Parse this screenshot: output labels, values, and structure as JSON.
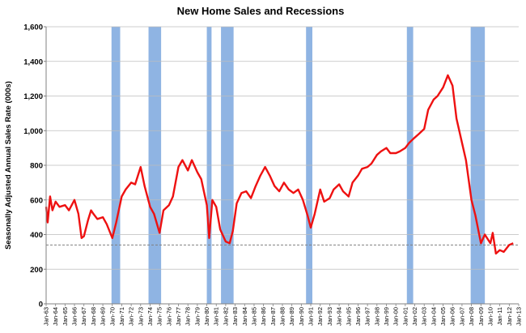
{
  "chart_data": {
    "type": "line",
    "title": "New Home Sales and Recessions",
    "xlabel": "",
    "ylabel": "Seasonally Adjusted Annual Sales Rate (000s)",
    "ylim": [
      0,
      1600
    ],
    "yticks": [
      "0",
      "200",
      "400",
      "600",
      "800",
      "1,000",
      "1,200",
      "1,400",
      "1,600"
    ],
    "xlim": [
      "1963-01",
      "2013-01"
    ],
    "xticks": [
      "Jan-63",
      "Jan-64",
      "Jan-65",
      "Jan-66",
      "Jan-67",
      "Jan-68",
      "Jan-69",
      "Jan-70",
      "Jan-71",
      "Jan-72",
      "Jan-73",
      "Jan-74",
      "Jan-75",
      "Jan-76",
      "Jan-77",
      "Jan-78",
      "Jan-79",
      "Jan-80",
      "Jan-81",
      "Jan-82",
      "Jan-83",
      "Jan-84",
      "Jan-85",
      "Jan-86",
      "Jan-87",
      "Jan-88",
      "Jan-89",
      "Jan-90",
      "Jan-91",
      "Jan-92",
      "Jan-93",
      "Jan-94",
      "Jan-95",
      "Jan-96",
      "Jan-97",
      "Jan-98",
      "Jan-99",
      "Jan-00",
      "Jan-01",
      "Jan-02",
      "Jan-03",
      "Jan-04",
      "Jan-05",
      "Jan-06",
      "Jan-07",
      "Jan-08",
      "Jan-09",
      "Jan-10",
      "Jan-11",
      "Jan-12",
      "Jan-13"
    ],
    "grid": true,
    "legend": "none",
    "line_color": "#ee1111",
    "recession_color": "#8fb4e3",
    "reference_line": {
      "y": 340,
      "style": "dashed",
      "color": "#808080"
    },
    "recessions": [
      {
        "start": "1969-12",
        "end": "1970-11"
      },
      {
        "start": "1973-11",
        "end": "1975-03"
      },
      {
        "start": "1980-01",
        "end": "1980-07"
      },
      {
        "start": "1981-07",
        "end": "1982-11"
      },
      {
        "start": "1990-07",
        "end": "1991-03"
      },
      {
        "start": "2001-03",
        "end": "2001-11"
      },
      {
        "start": "2007-12",
        "end": "2009-06"
      }
    ],
    "series": [
      {
        "color": "#ee1111",
        "points": [
          [
            "1963-01",
            560
          ],
          [
            "1963-03",
            470
          ],
          [
            "1963-06",
            620
          ],
          [
            "1963-09",
            540
          ],
          [
            "1964-01",
            590
          ],
          [
            "1964-06",
            560
          ],
          [
            "1965-01",
            570
          ],
          [
            "1965-06",
            540
          ],
          [
            "1966-01",
            600
          ],
          [
            "1966-06",
            520
          ],
          [
            "1966-10",
            380
          ],
          [
            "1967-01",
            390
          ],
          [
            "1967-06",
            480
          ],
          [
            "1967-10",
            540
          ],
          [
            "1968-01",
            520
          ],
          [
            "1968-06",
            490
          ],
          [
            "1969-01",
            500
          ],
          [
            "1969-06",
            460
          ],
          [
            "1970-01",
            380
          ],
          [
            "1970-06",
            470
          ],
          [
            "1971-01",
            620
          ],
          [
            "1971-06",
            660
          ],
          [
            "1972-01",
            700
          ],
          [
            "1972-06",
            690
          ],
          [
            "1973-01",
            790
          ],
          [
            "1973-06",
            680
          ],
          [
            "1974-01",
            560
          ],
          [
            "1974-06",
            520
          ],
          [
            "1975-01",
            410
          ],
          [
            "1975-06",
            540
          ],
          [
            "1976-01",
            570
          ],
          [
            "1976-06",
            620
          ],
          [
            "1977-01",
            790
          ],
          [
            "1977-06",
            830
          ],
          [
            "1978-01",
            770
          ],
          [
            "1978-06",
            830
          ],
          [
            "1979-01",
            760
          ],
          [
            "1979-06",
            720
          ],
          [
            "1980-01",
            570
          ],
          [
            "1980-04",
            380
          ],
          [
            "1980-08",
            600
          ],
          [
            "1981-01",
            560
          ],
          [
            "1981-06",
            430
          ],
          [
            "1982-01",
            360
          ],
          [
            "1982-06",
            350
          ],
          [
            "1982-10",
            420
          ],
          [
            "1983-03",
            580
          ],
          [
            "1983-09",
            640
          ],
          [
            "1984-03",
            650
          ],
          [
            "1984-09",
            610
          ],
          [
            "1985-03",
            680
          ],
          [
            "1985-09",
            740
          ],
          [
            "1986-03",
            790
          ],
          [
            "1986-09",
            740
          ],
          [
            "1987-03",
            680
          ],
          [
            "1987-09",
            650
          ],
          [
            "1988-03",
            700
          ],
          [
            "1988-09",
            660
          ],
          [
            "1989-03",
            640
          ],
          [
            "1989-09",
            660
          ],
          [
            "1990-03",
            600
          ],
          [
            "1990-09",
            510
          ],
          [
            "1991-01",
            440
          ],
          [
            "1991-06",
            520
          ],
          [
            "1992-01",
            660
          ],
          [
            "1992-06",
            590
          ],
          [
            "1993-01",
            610
          ],
          [
            "1993-06",
            660
          ],
          [
            "1994-01",
            690
          ],
          [
            "1994-06",
            650
          ],
          [
            "1995-01",
            620
          ],
          [
            "1995-06",
            700
          ],
          [
            "1996-01",
            740
          ],
          [
            "1996-06",
            780
          ],
          [
            "1997-01",
            790
          ],
          [
            "1997-06",
            810
          ],
          [
            "1998-01",
            860
          ],
          [
            "1998-06",
            880
          ],
          [
            "1999-01",
            900
          ],
          [
            "1999-06",
            870
          ],
          [
            "2000-01",
            870
          ],
          [
            "2000-06",
            880
          ],
          [
            "2001-01",
            900
          ],
          [
            "2001-06",
            930
          ],
          [
            "2002-01",
            960
          ],
          [
            "2002-06",
            980
          ],
          [
            "2003-01",
            1010
          ],
          [
            "2003-06",
            1120
          ],
          [
            "2004-01",
            1180
          ],
          [
            "2004-06",
            1200
          ],
          [
            "2005-01",
            1250
          ],
          [
            "2005-07",
            1320
          ],
          [
            "2006-01",
            1260
          ],
          [
            "2006-06",
            1070
          ],
          [
            "2007-01",
            930
          ],
          [
            "2007-06",
            830
          ],
          [
            "2008-01",
            600
          ],
          [
            "2008-06",
            510
          ],
          [
            "2009-01",
            350
          ],
          [
            "2009-06",
            400
          ],
          [
            "2010-01",
            350
          ],
          [
            "2010-04",
            410
          ],
          [
            "2010-08",
            290
          ],
          [
            "2011-01",
            310
          ],
          [
            "2011-06",
            300
          ],
          [
            "2012-01",
            340
          ],
          [
            "2012-06",
            350
          ]
        ]
      }
    ]
  }
}
